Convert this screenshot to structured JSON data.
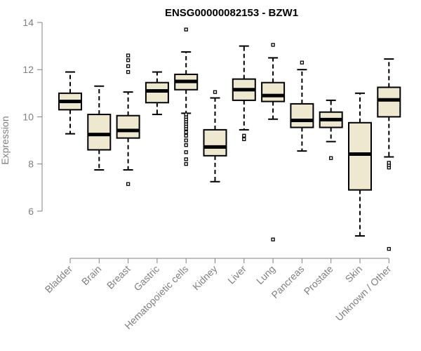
{
  "chart_data": {
    "type": "boxplot",
    "title": "ENSG00000082153 - BZW1",
    "xlabel": "",
    "ylabel": "Expression",
    "ylim": [
      4.0,
      14.0
    ],
    "yticks": [
      6,
      8,
      10,
      12,
      14
    ],
    "grid": false,
    "categories": [
      "Bladder",
      "Brain",
      "Breast",
      "Gastric",
      "Hematopoietic cells",
      "Kidney",
      "Liver",
      "Lung",
      "Pancreas",
      "Prostate",
      "Skin",
      "Unknown / Other"
    ],
    "boxes": [
      {
        "category": "Bladder",
        "whisker_low": 9.28,
        "q1": 10.3,
        "median": 10.65,
        "q3": 11.0,
        "whisker_high": 11.9,
        "outliers": []
      },
      {
        "category": "Brain",
        "whisker_low": 7.75,
        "q1": 8.6,
        "median": 9.25,
        "q3": 10.1,
        "whisker_high": 11.3,
        "outliers": []
      },
      {
        "category": "Breast",
        "whisker_low": 7.75,
        "q1": 9.1,
        "median": 9.42,
        "q3": 10.05,
        "whisker_high": 11.05,
        "outliers": [
          7.15,
          11.9,
          12.15,
          12.4,
          12.6
        ]
      },
      {
        "category": "Gastric",
        "whisker_low": 10.1,
        "q1": 10.6,
        "median": 11.1,
        "q3": 11.45,
        "whisker_high": 11.9,
        "outliers": []
      },
      {
        "category": "Hematopoietic cells",
        "whisker_low": 10.15,
        "q1": 11.15,
        "median": 11.5,
        "q3": 11.8,
        "whisker_high": 12.75,
        "outliers": [
          8.0,
          8.2,
          8.5,
          8.8,
          9.0,
          9.2,
          9.35,
          9.5,
          9.6,
          9.7,
          9.8,
          9.9,
          10.0,
          10.1,
          13.7
        ]
      },
      {
        "category": "Kidney",
        "whisker_low": 7.25,
        "q1": 8.35,
        "median": 8.72,
        "q3": 9.45,
        "whisker_high": 10.8,
        "outliers": [
          11.05
        ]
      },
      {
        "category": "Liver",
        "whisker_low": 9.45,
        "q1": 10.7,
        "median": 11.15,
        "q3": 11.6,
        "whisker_high": 13.0,
        "outliers": [
          9.05,
          9.2
        ]
      },
      {
        "category": "Lung",
        "whisker_low": 9.9,
        "q1": 10.65,
        "median": 10.9,
        "q3": 11.45,
        "whisker_high": 12.5,
        "outliers": [
          4.8,
          13.05
        ]
      },
      {
        "category": "Pancreas",
        "whisker_low": 8.55,
        "q1": 9.55,
        "median": 9.85,
        "q3": 10.55,
        "whisker_high": 12.0,
        "outliers": [
          12.3
        ]
      },
      {
        "category": "Prostate",
        "whisker_low": 8.95,
        "q1": 9.55,
        "median": 9.88,
        "q3": 10.2,
        "whisker_high": 10.7,
        "outliers": [
          8.25
        ]
      },
      {
        "category": "Skin",
        "whisker_low": 4.95,
        "q1": 6.9,
        "median": 8.42,
        "q3": 9.75,
        "whisker_high": 11.0,
        "outliers": []
      },
      {
        "category": "Unknown / Other",
        "whisker_low": 8.3,
        "q1": 10.0,
        "median": 10.72,
        "q3": 11.25,
        "whisker_high": 12.45,
        "outliers": [
          4.4,
          7.85,
          7.95,
          8.05
        ]
      }
    ]
  }
}
